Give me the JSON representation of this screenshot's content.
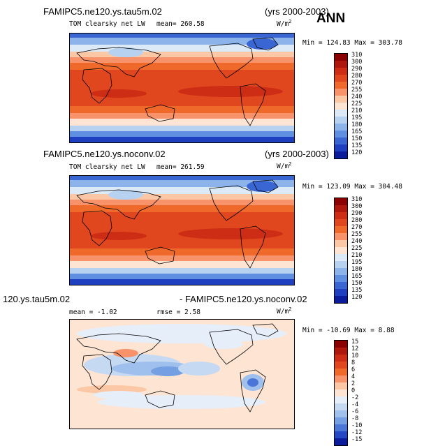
{
  "chart_data": [
    {
      "type": "heatmap",
      "title": "FAMIPC5.ne120.ys.tau5m.02",
      "period": "(yrs 2000-2003)",
      "field": "TOM clearsky net LW",
      "mean_text": "mean= 260.58",
      "units": "W/m",
      "units_exp": "2",
      "minmax_text": "Min = 124.83 Max = 303.78",
      "levels": [
        "310",
        "300",
        "290",
        "280",
        "270",
        "255",
        "240",
        "225",
        "210",
        "195",
        "180",
        "165",
        "150",
        "135",
        "120"
      ],
      "colors": [
        "#8b0000",
        "#b0170c",
        "#cc2d14",
        "#e0471e",
        "#ef6a2a",
        "#f7926b",
        "#fcc7a5",
        "#fde4d3",
        "#dce9f7",
        "#b7d1f0",
        "#8db4ea",
        "#5e8fe0",
        "#3a66d4",
        "#1d3fc0",
        "#0a1c9c"
      ]
    },
    {
      "type": "heatmap",
      "title": "FAMIPC5.ne120.ys.noconv.02",
      "period": "(yrs 2000-2003)",
      "field": "TOM clearsky net LW",
      "mean_text": "mean= 261.59",
      "units": "W/m",
      "units_exp": "2",
      "minmax_text": "Min = 123.09 Max = 304.48",
      "levels": [
        "310",
        "300",
        "290",
        "280",
        "270",
        "255",
        "240",
        "225",
        "210",
        "195",
        "180",
        "165",
        "150",
        "135",
        "120"
      ],
      "colors": [
        "#8b0000",
        "#b0170c",
        "#cc2d14",
        "#e0471e",
        "#ef6a2a",
        "#f7926b",
        "#fcc7a5",
        "#fde4d3",
        "#dce9f7",
        "#b7d1f0",
        "#8db4ea",
        "#5e8fe0",
        "#3a66d4",
        "#1d3fc0",
        "#0a1c9c"
      ]
    },
    {
      "type": "heatmap",
      "title_left": "120.ys.tau5m.02",
      "title_right": "- FAMIPC5.ne120.ys.noconv.02",
      "mean_text": "mean =  -1.02",
      "rmse_text": "rmse =    2.58",
      "units": "W/m",
      "units_exp": "2",
      "minmax_text": "Min = -10.69 Max =   8.88",
      "levels": [
        "15",
        "12",
        "10",
        "8",
        "6",
        "4",
        "2",
        "0",
        "-2",
        "-4",
        "-6",
        "-8",
        "-10",
        "-12",
        "-15"
      ],
      "colors": [
        "#8b0000",
        "#b0170c",
        "#cc2d14",
        "#e0471e",
        "#ef6a2a",
        "#f7926b",
        "#fcc7a5",
        "#fde4d3",
        "#e6eefa",
        "#c5d9f2",
        "#9fbfec",
        "#749fe3",
        "#4a76d8",
        "#2447c6",
        "#0a1c9c"
      ]
    }
  ],
  "season": "ANN"
}
